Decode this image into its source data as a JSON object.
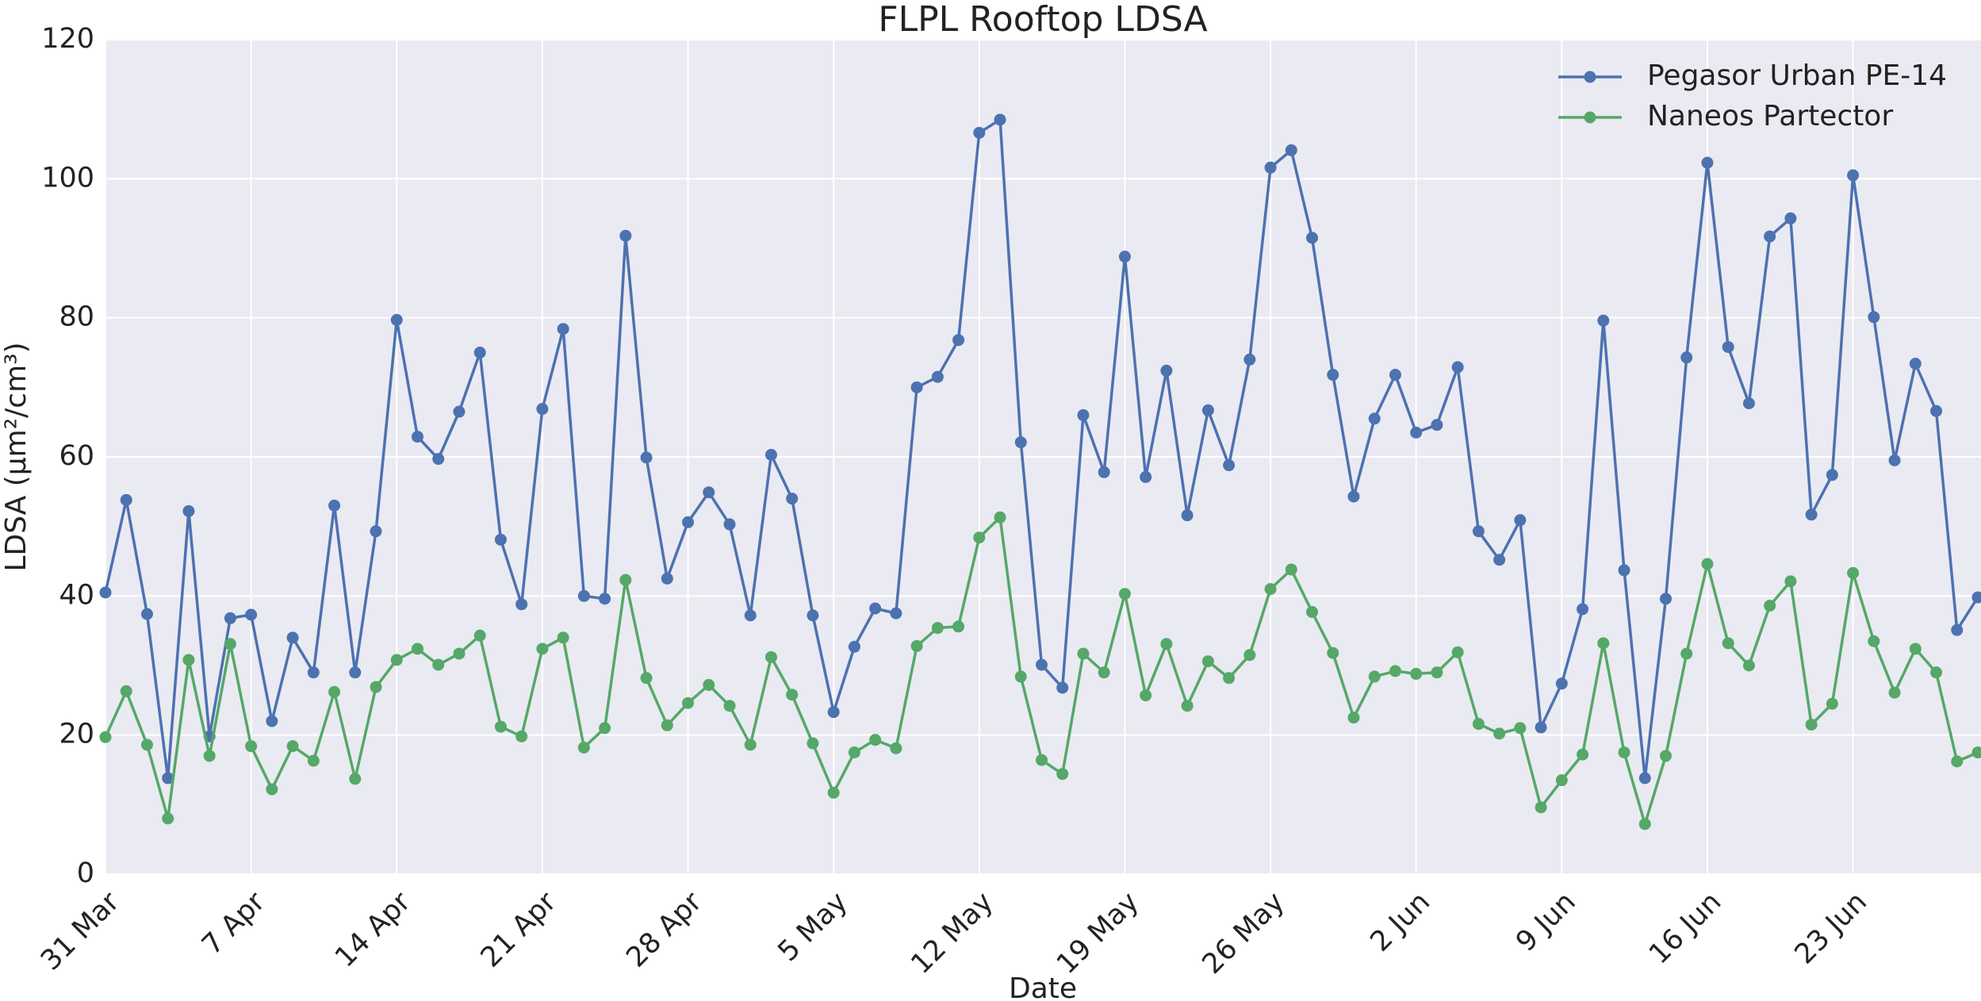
{
  "chart_data": {
    "type": "line",
    "title": "FLPL Rooftop LDSA",
    "xlabel": "Date",
    "ylabel": "LDSA (μm²/cm³)",
    "categories": [
      "31 Mar",
      null,
      null,
      null,
      null,
      null,
      null,
      "7 Apr",
      null,
      null,
      null,
      null,
      null,
      null,
      "14 Apr",
      null,
      null,
      null,
      null,
      null,
      null,
      "21 Apr",
      null,
      null,
      null,
      null,
      null,
      null,
      "28 Apr",
      null,
      null,
      null,
      null,
      null,
      null,
      "5 May",
      null,
      null,
      null,
      null,
      null,
      null,
      "12 May",
      null,
      null,
      null,
      null,
      null,
      null,
      "19 May",
      null,
      null,
      null,
      null,
      null,
      null,
      "26 May",
      null,
      null,
      null,
      null,
      null,
      null,
      "2 Jun",
      null,
      null,
      null,
      null,
      null,
      null,
      "9 Jun",
      null,
      null,
      null,
      null,
      null,
      null,
      "16 Jun",
      null,
      null,
      null,
      null,
      null,
      null,
      "23 Jun",
      null,
      null,
      null,
      null,
      null,
      null
    ],
    "series": [
      {
        "name": "Pegasor Urban PE-14",
        "color": "#4c72b0",
        "values": [
          40.5,
          53.8,
          37.4,
          13.8,
          52.2,
          19.8,
          36.8,
          37.3,
          22,
          34,
          29,
          53,
          29,
          49.3,
          79.7,
          62.9,
          59.7,
          66.5,
          75,
          48.1,
          38.8,
          66.9,
          78.4,
          40,
          39.6,
          91.8,
          59.9,
          42.5,
          50.6,
          54.9,
          50.3,
          37.2,
          60.3,
          54,
          37.2,
          23.3,
          32.7,
          38.2,
          37.5,
          70,
          71.5,
          76.8,
          106.6,
          108.5,
          62.1,
          30.1,
          26.8,
          66,
          57.8,
          88.8,
          57.1,
          72.4,
          51.6,
          66.7,
          58.8,
          74,
          101.6,
          104.1,
          91.5,
          71.8,
          54.3,
          65.5,
          71.8,
          63.5,
          64.6,
          72.9,
          49.3,
          45.2,
          50.9,
          21.1,
          27.4,
          38.1,
          79.6,
          43.7,
          13.8,
          39.6,
          74.3,
          102.3,
          75.8,
          67.7,
          91.7,
          94.3,
          51.7,
          57.4,
          100.5,
          80.1,
          59.5,
          73.4,
          66.6,
          35.1,
          39.8
        ]
      },
      {
        "name": "Naneos Partector",
        "color": "#55a868",
        "values": [
          19.7,
          26.3,
          18.6,
          8,
          30.8,
          17,
          33.1,
          18.4,
          12.2,
          18.4,
          16.3,
          26.2,
          13.7,
          26.9,
          30.8,
          32.4,
          30.1,
          31.7,
          34.3,
          21.2,
          19.8,
          32.4,
          34,
          18.2,
          21,
          42.3,
          28.2,
          21.4,
          24.6,
          27.2,
          24.2,
          18.6,
          31.2,
          25.8,
          18.8,
          11.7,
          17.5,
          19.3,
          18.1,
          32.8,
          35.4,
          35.6,
          48.4,
          51.3,
          28.4,
          16.4,
          14.4,
          31.7,
          29,
          40.3,
          25.7,
          33.1,
          24.2,
          30.6,
          28.2,
          31.5,
          41,
          43.8,
          37.7,
          31.8,
          22.5,
          28.4,
          29.2,
          28.8,
          29,
          31.9,
          21.6,
          20.2,
          21,
          9.6,
          13.5,
          17.2,
          33.2,
          17.5,
          7.2,
          17,
          31.7,
          44.6,
          33.2,
          30,
          38.6,
          42.1,
          21.5,
          24.5,
          43.3,
          33.5,
          26.1,
          32.4,
          29,
          16.2,
          17.5
        ]
      }
    ],
    "ylim": [
      0,
      120
    ],
    "yticks": [
      0,
      20,
      40,
      60,
      80,
      100,
      120
    ],
    "grid": true,
    "legend": "upper right"
  }
}
